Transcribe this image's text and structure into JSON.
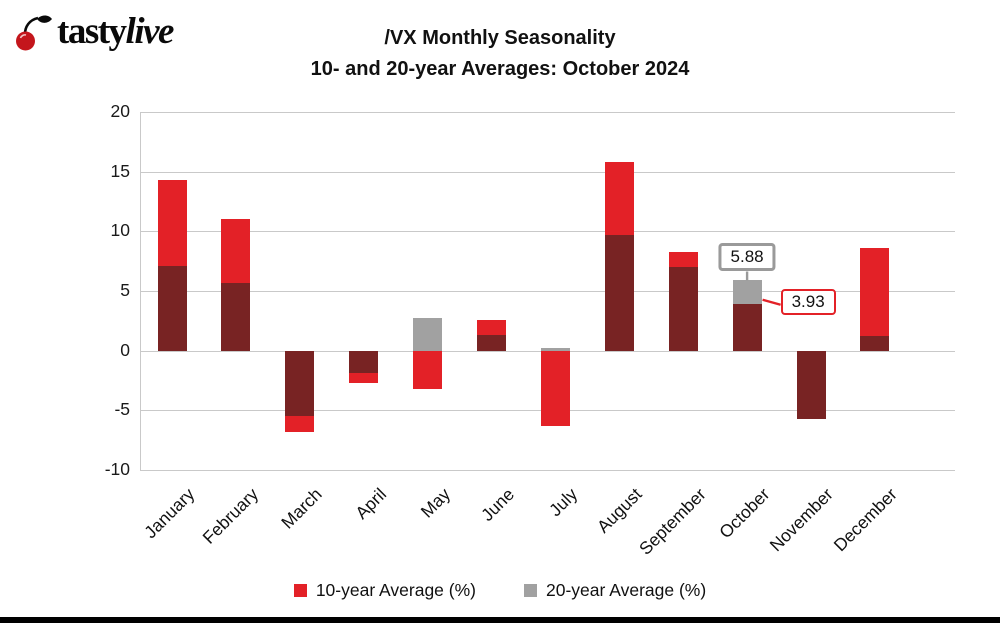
{
  "brand": {
    "bold": "tasty",
    "italic": "live"
  },
  "title": {
    "line1": "/VX Monthly Seasonality",
    "line2": "10- and 20-year Averages: October 2024"
  },
  "legend": [
    {
      "label": "10-year Average (%)",
      "color": "#e32127"
    },
    {
      "label": "20-year Average (%)",
      "color": "#a1a1a1"
    }
  ],
  "colors": {
    "red": "#e32127",
    "gray": "#a1a1a1",
    "overlap_maroon": "#782323",
    "grid": "#c9c9c9",
    "callout_gray_border": "#9a9a9a"
  },
  "chart_data": {
    "type": "bar",
    "title": "/VX Monthly Seasonality",
    "subtitle": "10- and 20-year Averages: October 2024",
    "categories": [
      "January",
      "February",
      "March",
      "April",
      "May",
      "June",
      "July",
      "August",
      "September",
      "October",
      "November",
      "December"
    ],
    "series": [
      {
        "name": "10-year Average (%)",
        "color": "#e32127",
        "values": [
          14.3,
          11.0,
          -6.8,
          -2.7,
          -3.2,
          2.6,
          -6.3,
          15.8,
          8.3,
          3.93,
          -5.7,
          8.6
        ]
      },
      {
        "name": "20-year Average (%)",
        "color": "#a1a1a1",
        "values": [
          7.1,
          5.7,
          -5.5,
          -1.9,
          2.7,
          1.3,
          0.2,
          9.7,
          7.0,
          5.88,
          -5.7,
          1.2
        ]
      }
    ],
    "overlap_color": "#782323",
    "ylim": [
      -10,
      20
    ],
    "y_ticks": [
      20,
      15,
      10,
      5,
      0,
      -5,
      -10
    ],
    "grid": true,
    "legend_position": "bottom",
    "annotations": [
      {
        "month": "October",
        "series": "20-year",
        "value": "5.88",
        "border": "#9a9a9a",
        "border_px": 3
      },
      {
        "month": "October",
        "series": "10-year",
        "value": "3.93",
        "border": "#e32127",
        "border_px": 2.5
      }
    ]
  }
}
